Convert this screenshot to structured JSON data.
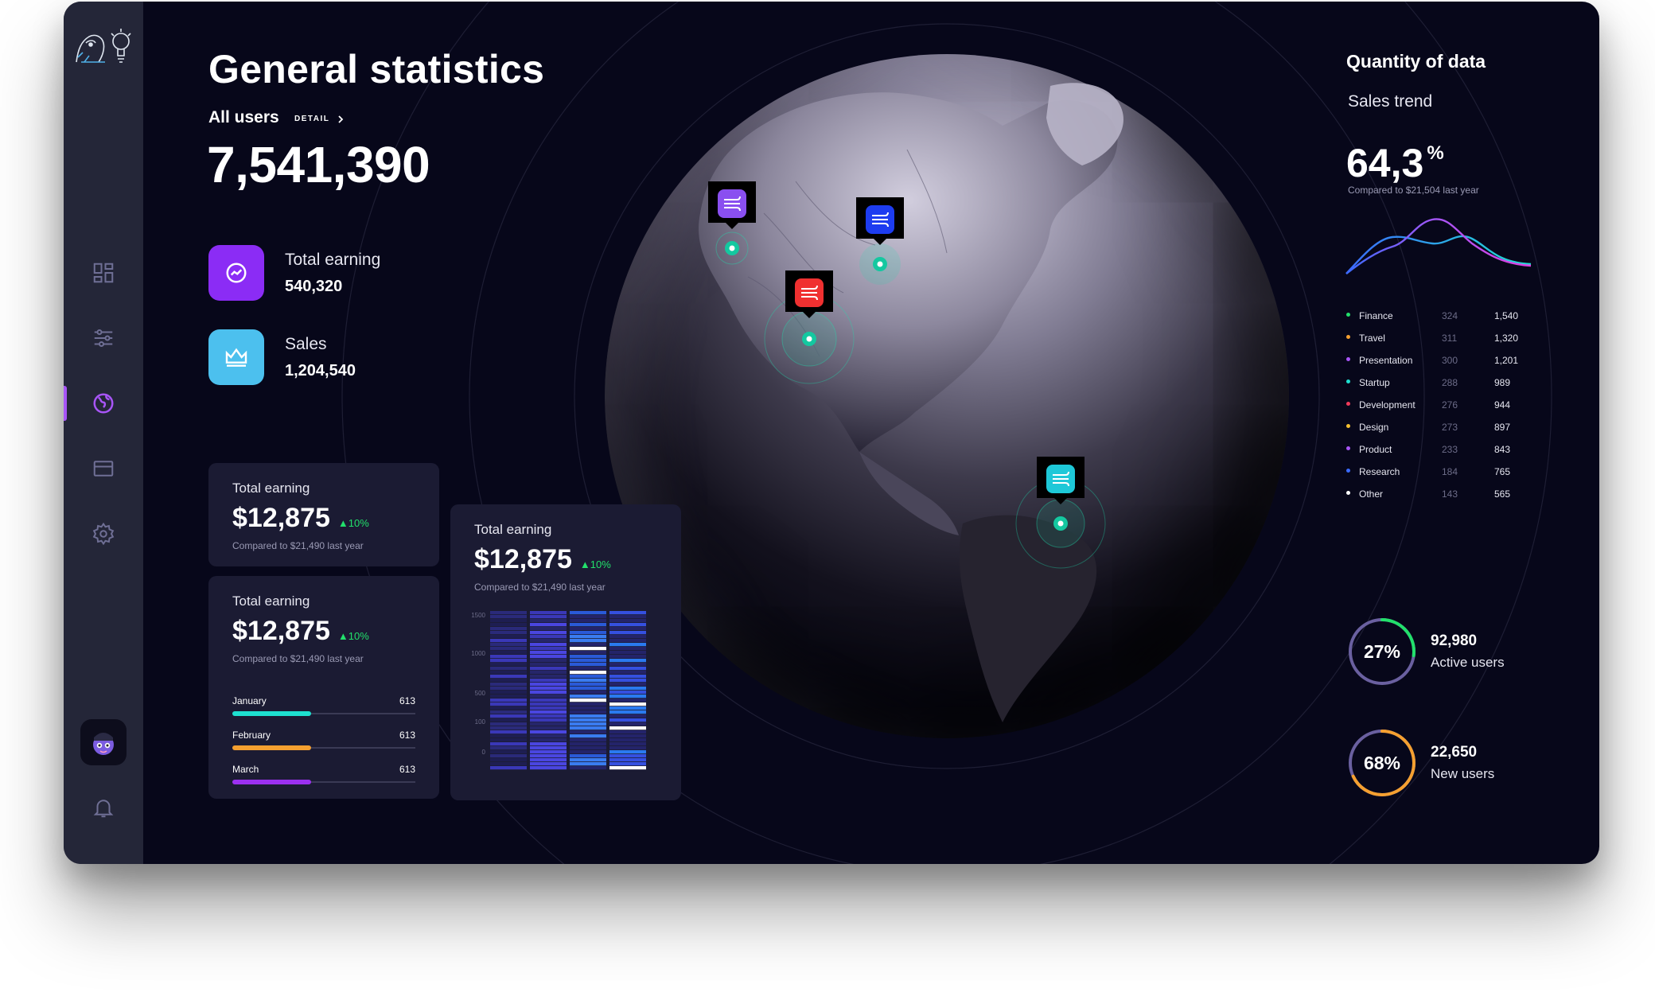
{
  "header": {
    "title": "General statistics",
    "all_users_label": "All users",
    "detail_label": "DETAIL",
    "all_users_value": "7,541,390"
  },
  "stats": [
    {
      "label": "Total earning",
      "value": "540,320",
      "icon": "trend-icon",
      "color": "#8b2cf5"
    },
    {
      "label": "Sales",
      "value": "1,204,540",
      "icon": "crown-icon",
      "color": "#4cc0ee"
    }
  ],
  "cards": [
    {
      "title": "Total earning",
      "amount": "$12,875",
      "change": "▲10%",
      "sub": "Compared to $21,490 last year"
    },
    {
      "title": "Total earning",
      "amount": "$12,875",
      "change": "▲10%",
      "sub": "Compared to $21,490 last year",
      "months": [
        {
          "label": "January",
          "value": "613",
          "fill": 0.43,
          "color": "#1ee0d0"
        },
        {
          "label": "February",
          "value": "613",
          "fill": 0.43,
          "color": "#f5a030"
        },
        {
          "label": "March",
          "value": "613",
          "fill": 0.43,
          "color": "#9b30f0"
        }
      ]
    },
    {
      "title": "Total earning",
      "amount": "$12,875",
      "change": "▲10%",
      "sub": "Compared to $21,490 last year"
    }
  ],
  "chart_data": {
    "type": "heatmap",
    "y_ticks": [
      "1500",
      "1000",
      "500",
      "100",
      "0"
    ],
    "columns": 4
  },
  "right": {
    "title": "Quantity of data",
    "subtitle": "Sales trend",
    "value": "64,3",
    "unit": "%",
    "compare": "Compared to $21,504 last year"
  },
  "legend": [
    {
      "name": "Finance",
      "a": "324",
      "b": "1,540",
      "color": "#22e06b"
    },
    {
      "name": "Travel",
      "a": "311",
      "b": "1,320",
      "color": "#f5a030"
    },
    {
      "name": "Presentation",
      "a": "300",
      "b": "1,201",
      "color": "#a855f7"
    },
    {
      "name": "Startup",
      "a": "288",
      "b": "989",
      "color": "#1ee0d0"
    },
    {
      "name": "Development",
      "a": "276",
      "b": "944",
      "color": "#f03a5a"
    },
    {
      "name": "Design",
      "a": "273",
      "b": "897",
      "color": "#f5c030"
    },
    {
      "name": "Product",
      "a": "233",
      "b": "843",
      "color": "#a855f7"
    },
    {
      "name": "Research",
      "a": "184",
      "b": "765",
      "color": "#3b6bff"
    },
    {
      "name": "Other",
      "a": "143",
      "b": "565",
      "color": "#ffffff"
    }
  ],
  "kpis": [
    {
      "percent": "27%",
      "value": "92,980",
      "label": "Active users",
      "fraction": 0.27,
      "color": "#22e06b"
    },
    {
      "percent": "68%",
      "value": "22,650",
      "label": "New users",
      "fraction": 0.68,
      "color": "#f5a030"
    }
  ],
  "markers": [
    {
      "name": "marker-purple",
      "color": "#8a4ff0"
    },
    {
      "name": "marker-blue",
      "color": "#1d3cf0"
    },
    {
      "name": "marker-red",
      "color": "#f03030"
    },
    {
      "name": "marker-teal",
      "color": "#1ec8d8"
    }
  ]
}
